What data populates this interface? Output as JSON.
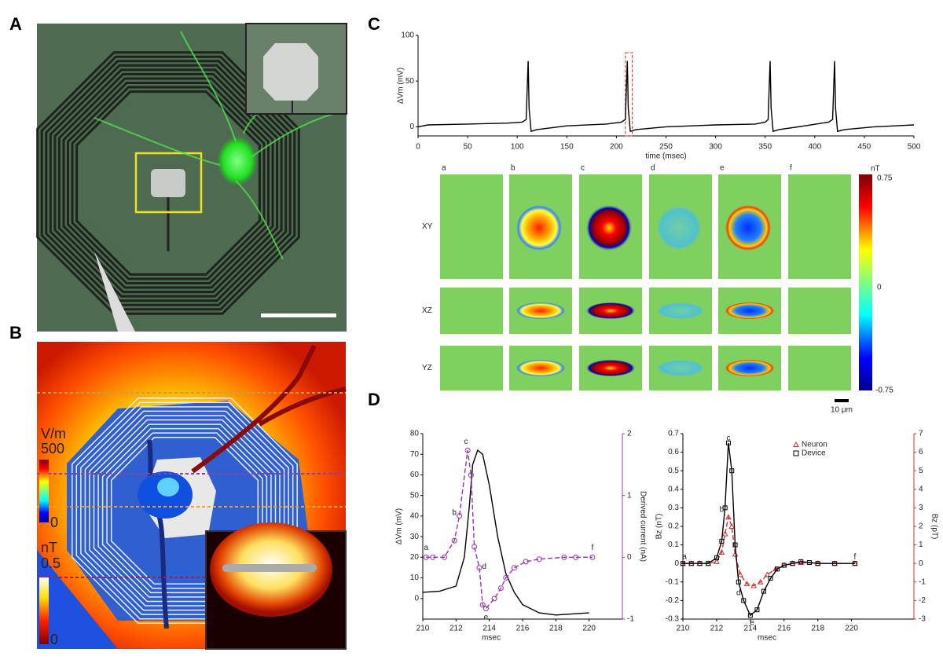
{
  "panel_labels": [
    "A",
    "B",
    "C",
    "D"
  ],
  "panel_b": {
    "vm_unit": "V/m",
    "vm_max": "500",
    "vm_min": "0",
    "nt_unit": "nT",
    "nt_max": "0.5",
    "nt_min": "0"
  },
  "maps": {
    "columns": [
      "a",
      "b",
      "c",
      "d",
      "e",
      "f"
    ],
    "rows": [
      "XY",
      "XZ",
      "YZ"
    ],
    "unit": "nT",
    "cbar_max": "0.75",
    "cbar_mid": "0",
    "cbar_min": "-0.75",
    "scale": "10 μm"
  },
  "chart_data": [
    {
      "type": "line",
      "x_label": "time (msec)",
      "y_label": "ΔVm (mV)",
      "xlim": [
        0,
        500
      ],
      "ylim": [
        -10,
        100
      ],
      "xticks": [
        0,
        50,
        100,
        150,
        200,
        250,
        300,
        350,
        400,
        450,
        500
      ],
      "yticks": [
        0,
        50,
        100
      ],
      "highlight": [
        209,
        216
      ],
      "highlight_color": "#e03030",
      "series": [
        {
          "color": "#000000",
          "x": [
            0,
            10,
            50,
            90,
            105,
            109,
            110,
            111,
            112,
            114,
            120,
            150,
            190,
            205,
            209,
            210,
            211,
            212,
            214,
            220,
            250,
            300,
            340,
            350,
            353,
            354,
            355,
            356,
            358,
            364,
            390,
            414,
            418,
            419,
            420,
            421,
            423,
            430,
            460,
            500
          ],
          "values": [
            0,
            2,
            3,
            4,
            5,
            8,
            40,
            72,
            20,
            -5,
            -3,
            1,
            3,
            5,
            8,
            40,
            72,
            20,
            -5,
            -3,
            0,
            2,
            3,
            5,
            8,
            40,
            72,
            20,
            -5,
            -3,
            1,
            5,
            8,
            40,
            72,
            20,
            -5,
            -3,
            0,
            2
          ]
        }
      ]
    },
    {
      "type": "line",
      "x_label": "msec",
      "y_label": "ΔVm (mV)",
      "y2_label": "Derived current (nA)",
      "y2_color": "#9933aa",
      "xlim": [
        210,
        222
      ],
      "ylim": [
        -10,
        80
      ],
      "y2lim": [
        -1,
        2
      ],
      "xticks": [
        210,
        212,
        214,
        216,
        218,
        220
      ],
      "yticks": [
        0,
        10,
        20,
        30,
        40,
        50,
        60,
        70,
        80
      ],
      "y2ticks": [
        -1,
        0,
        1,
        2
      ],
      "series": [
        {
          "color": "#000000",
          "x": [
            210,
            211,
            212,
            212.5,
            212.8,
            213,
            213.3,
            213.6,
            214,
            214.5,
            215,
            215.5,
            216,
            217,
            218,
            219,
            220
          ],
          "values": [
            3,
            3.5,
            6,
            20,
            45,
            65,
            72,
            70,
            55,
            30,
            12,
            3,
            -3,
            -7,
            -8,
            -7.5,
            -7
          ]
        },
        {
          "color": "#9933aa",
          "axis": "y2",
          "dash": true,
          "marker": "circle",
          "x": [
            210.2,
            210.6,
            211.3,
            211.9,
            212.2,
            212.7,
            212.9,
            213.1,
            213.4,
            213.6,
            213.8,
            214.3,
            214.7,
            215,
            215.5,
            216.2,
            217,
            218.5,
            219.2,
            220.2
          ],
          "values": [
            0,
            0,
            0,
            0.27,
            0.67,
            1.73,
            1.33,
            0.17,
            -0.17,
            -0.77,
            -0.83,
            -0.67,
            -0.5,
            -0.33,
            -0.17,
            -0.07,
            -0.03,
            0,
            0,
            0
          ]
        }
      ],
      "annotations": [
        {
          "text": "a",
          "x": 210.2,
          "y": 0.15
        },
        {
          "text": "b",
          "x": 211.9,
          "y": 0.72
        },
        {
          "text": "c",
          "x": 212.6,
          "y": 1.87
        },
        {
          "text": "d",
          "x": 213.7,
          "y": -0.15
        },
        {
          "text": "e",
          "x": 213.8,
          "y": -0.97
        },
        {
          "text": "f",
          "x": 220.2,
          "y": 0.15
        }
      ]
    },
    {
      "type": "line",
      "x_label": "msec",
      "y_label": "Bz (nT)",
      "y2_label": "Bz (pT)",
      "y2_color": "#d03030",
      "xlim": [
        210,
        223.7
      ],
      "ylim": [
        -0.3,
        0.7
      ],
      "y2lim": [
        -3,
        7
      ],
      "xticks": [
        210,
        212,
        214,
        216,
        218,
        220
      ],
      "yticks": [
        -0.3,
        -0.2,
        -0.1,
        0,
        0.1,
        0.2,
        0.3,
        0.4,
        0.5,
        0.6,
        0.7
      ],
      "y2ticks": [
        -3,
        -2,
        -1,
        0,
        1,
        2,
        3,
        4,
        5,
        6,
        7
      ],
      "legend": "upper right",
      "series": [
        {
          "name": "Neuron",
          "color": "#d03030",
          "axis": "y2",
          "dash": true,
          "marker": "triangle",
          "x": [
            210,
            210.5,
            211,
            211.5,
            212,
            212.3,
            212.5,
            212.7,
            212.9,
            213.1,
            213.4,
            213.8,
            214.2,
            214.6,
            215,
            215.5,
            216,
            216.5,
            217,
            218,
            219,
            220.2
          ],
          "values": [
            0,
            0,
            0,
            0,
            0.1,
            0.6,
            1.6,
            2.5,
            2.0,
            0.5,
            -0.6,
            -1.1,
            -1.2,
            -1.0,
            -0.6,
            -0.3,
            -0.1,
            0,
            0.05,
            0,
            0,
            0
          ]
        },
        {
          "name": "Device",
          "color": "#000000",
          "marker": "square",
          "x": [
            210,
            210.5,
            211,
            211.5,
            212,
            212.3,
            212.5,
            212.7,
            212.9,
            213.1,
            213.3,
            213.6,
            214,
            214.4,
            214.8,
            215.2,
            215.6,
            216,
            216.5,
            217,
            217.5,
            218,
            219,
            220.2
          ],
          "values": [
            0,
            0,
            0,
            0,
            0.03,
            0.12,
            0.3,
            0.65,
            0.5,
            0.1,
            -0.1,
            -0.2,
            -0.28,
            -0.25,
            -0.15,
            -0.08,
            -0.03,
            -0.01,
            0,
            0.01,
            0.005,
            0,
            0,
            0
          ]
        }
      ],
      "annotations": [
        {
          "text": "a",
          "x": 210.1,
          "y": 0.035
        },
        {
          "text": "b",
          "x": 212.3,
          "y": 0.29
        },
        {
          "text": "c",
          "x": 212.7,
          "y": 0.675
        },
        {
          "text": "d",
          "x": 213.3,
          "y": -0.16
        },
        {
          "text": "e",
          "x": 214.1,
          "y": -0.32
        },
        {
          "text": "f",
          "x": 220.2,
          "y": 0.035
        }
      ]
    }
  ]
}
